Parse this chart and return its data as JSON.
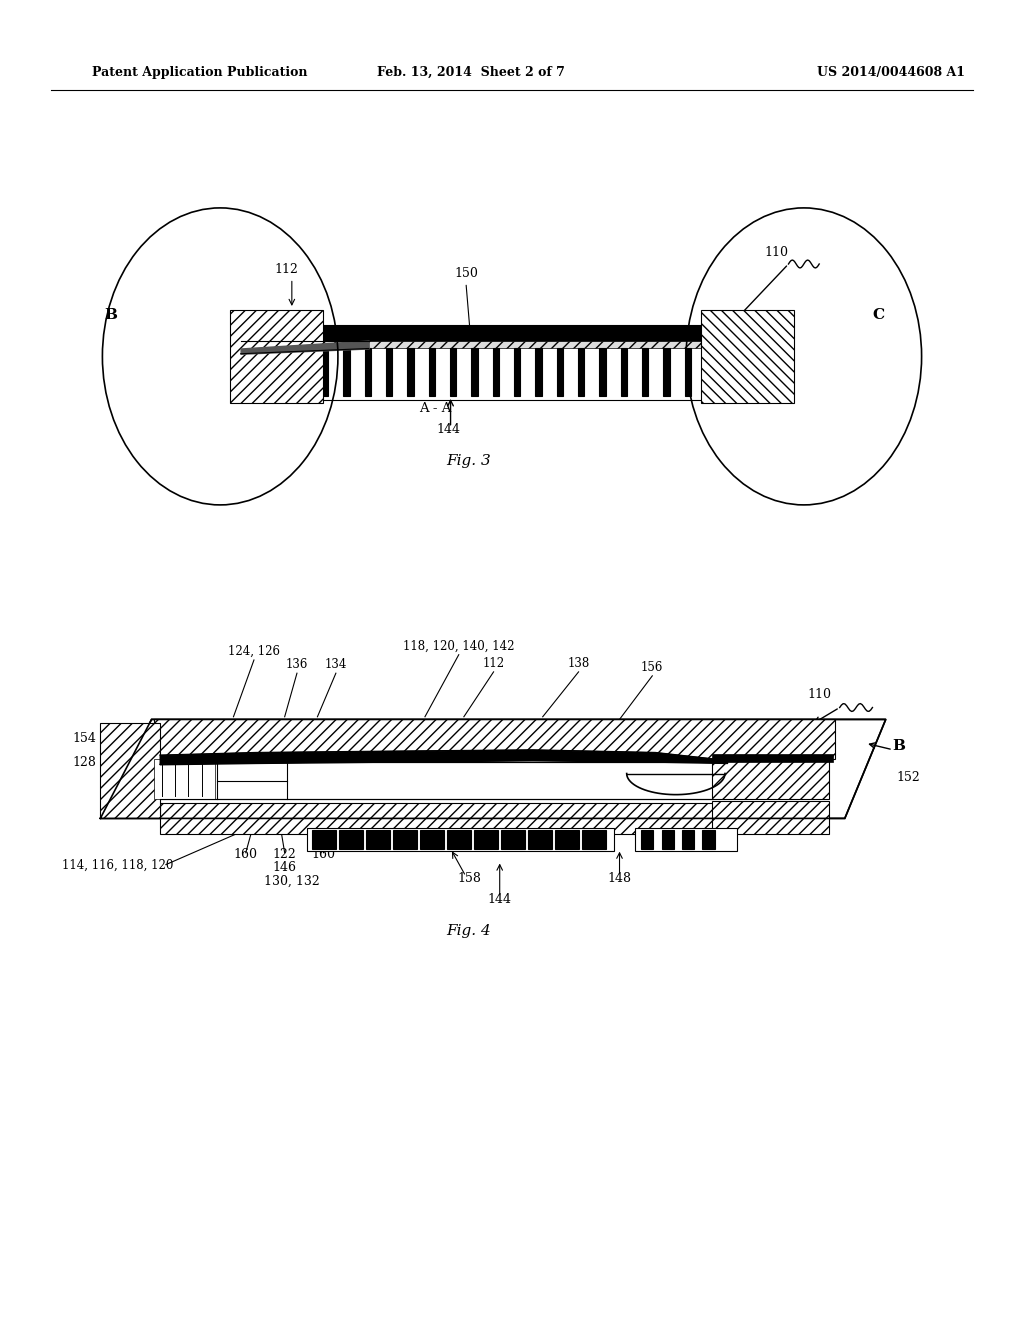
{
  "bg_color": "#ffffff",
  "header_left": "Patent Application Publication",
  "header_center": "Feb. 13, 2014  Sheet 2 of 7",
  "header_right": "US 2014/0044608 A1",
  "fig3_caption": "Fig. 3",
  "fig4_caption": "Fig. 4"
}
